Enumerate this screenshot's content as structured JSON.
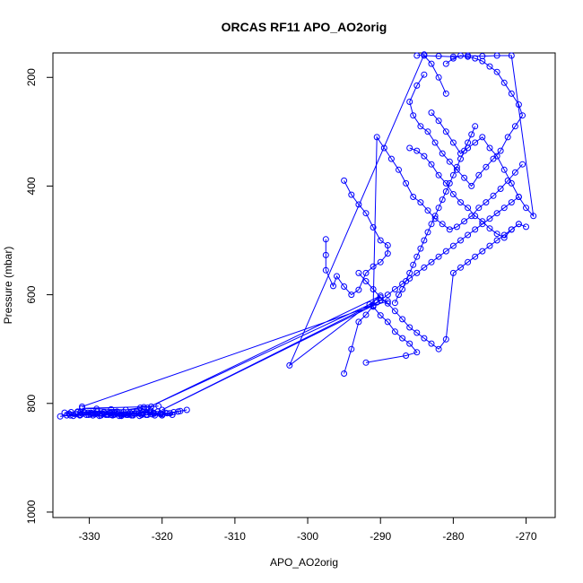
{
  "chart_data": {
    "type": "line",
    "title": "ORCAS RF11 APO_AO2orig",
    "xlabel": "APO_AO2orig",
    "ylabel": "Pressure (mbar)",
    "xlim": [
      -335,
      -266
    ],
    "ylim": [
      1010,
      155
    ],
    "y_reversed": true,
    "grid": false,
    "legend": "none",
    "marker": "open-circle",
    "color": "#0000ff",
    "x_ticks": [
      -330,
      -320,
      -310,
      -300,
      -290,
      -280,
      -270
    ],
    "y_ticks": [
      200,
      400,
      600,
      800,
      1000
    ],
    "x_tick_labels": [
      "-330",
      "-320",
      "-310",
      "-300",
      "-290",
      "-280",
      "-270"
    ],
    "y_tick_labels": [
      "200",
      "400",
      "600",
      "800",
      "1000"
    ],
    "series": [
      {
        "x": [
          -321.7,
          -322.6,
          -323.5,
          -324.4,
          -325.3,
          -326.2,
          -327.1,
          -328.0,
          -328.9,
          -329.8,
          -330.7,
          -331.6,
          -332.5,
          -333.4,
          -332.8,
          -331.9,
          -331.0,
          -330.1,
          -329.2,
          -328.3,
          -327.4,
          -326.5,
          -325.6,
          -324.7,
          -323.8,
          -322.9,
          -322.0,
          -321.1,
          -320.2,
          -319.3,
          -318.4,
          -317.5,
          -316.6,
          -317.8,
          -318.9,
          -319.9,
          -321.0,
          -322.2,
          -323.1,
          -324.0,
          -324.9,
          -325.9,
          -326.8,
          -327.7,
          -328.6,
          -329.5,
          -330.4,
          -331.3,
          -332.2,
          -333.1,
          -334.0,
          -332.6,
          -331.2,
          -329.8,
          -328.4,
          -327.0,
          -325.6,
          -324.2,
          -322.8,
          -321.4,
          -320.0,
          -318.6,
          -319.6,
          -320.6,
          -321.6,
          -322.6,
          -323.6,
          -324.6,
          -325.6,
          -326.6,
          -327.6,
          -328.6,
          -329.6,
          -330.6,
          -331.6,
          -320.2,
          -321.2,
          -322.2,
          -323.2,
          -324.2,
          -325.2,
          -326.2,
          -327.2,
          -328.2,
          -329.2,
          -330.2,
          -331.2,
          -322.5,
          -323.0,
          -325.0,
          -327.0,
          -329.0,
          -331.0,
          -321.5,
          -322.5,
          -320.5
        ],
        "y": [
          815,
          816,
          815,
          817,
          816,
          815,
          817,
          816,
          815,
          817,
          816,
          815,
          816,
          817,
          819,
          820,
          819,
          821,
          820,
          819,
          821,
          820,
          822,
          821,
          819,
          820,
          821,
          819,
          820,
          818,
          816,
          814,
          812,
          815,
          818,
          820,
          822,
          821,
          823,
          822,
          821,
          823,
          822,
          821,
          823,
          822,
          821,
          822,
          823,
          822,
          824,
          822,
          821,
          820,
          822,
          821,
          823,
          822,
          821,
          820,
          822,
          821,
          817,
          815,
          813,
          816,
          818,
          819,
          820,
          821,
          820,
          819,
          818,
          817,
          816,
          818,
          817,
          816,
          818,
          819,
          820,
          819,
          818,
          819,
          818,
          817,
          816,
          810,
          808,
          812,
          811,
          810,
          809,
          806,
          807,
          805
        ]
      },
      {
        "x": [
          -331,
          -291,
          -289,
          -290,
          -290.5,
          -320,
          -291,
          -291.5,
          -322,
          -290,
          -302.5,
          -284,
          -285
        ],
        "y": [
          806,
          620,
          612,
          610,
          614,
          812,
          620,
          618,
          808,
          602,
          730,
          158,
          160
        ]
      },
      {
        "x": [
          -297.5,
          -297.5,
          -297.5,
          -296.5,
          -296,
          -295,
          -294,
          -293,
          -292,
          -291,
          -290,
          -289,
          -289,
          -290,
          -291,
          -292,
          -293,
          -294,
          -295
        ],
        "y": [
          498,
          527,
          555,
          584,
          566,
          585,
          600,
          591,
          560,
          548,
          540,
          524,
          509,
          500,
          476,
          450,
          434,
          416,
          390
        ],
        "note": ""
      },
      {
        "x": [
          -293,
          -292,
          -291,
          -290,
          -289,
          -288,
          -287,
          -286,
          -285,
          -284,
          -283,
          -282,
          -281,
          -280,
          -279,
          -278,
          -277,
          -276,
          -275,
          -274,
          -273,
          -272,
          -271
        ],
        "y": [
          560,
          575,
          590,
          605,
          616,
          630,
          645,
          660,
          670,
          680,
          690,
          700,
          682,
          560,
          550,
          540,
          530,
          520,
          510,
          500,
          490,
          480,
          470
        ]
      },
      {
        "x": [
          -295,
          -294,
          -293,
          -292,
          -291,
          -290,
          -289,
          -288,
          -287,
          -286,
          -285,
          -284,
          -283,
          -282,
          -281,
          -280,
          -279,
          -278,
          -277,
          -276,
          -275,
          -274,
          -273,
          -272,
          -271
        ],
        "y": [
          745,
          700,
          650,
          637,
          620,
          610,
          600,
          590,
          580,
          570,
          560,
          550,
          540,
          530,
          520,
          510,
          500,
          490,
          480,
          470,
          460,
          450,
          440,
          430,
          420
        ]
      },
      {
        "x": [
          -292,
          -286.5,
          -285,
          -286,
          -287,
          -288,
          -289,
          -290,
          -291,
          -290.5,
          -289.5,
          -288.5,
          -287.5,
          -286.5,
          -285.5,
          -284.5,
          -283.5,
          -282.5,
          -281.5,
          -280.5,
          -279.5,
          -278.5,
          -277.5,
          -276.5,
          -275.5,
          -274.5,
          -273.5,
          -272.5,
          -271.5,
          -270.5
        ],
        "y": [
          725,
          712,
          706,
          690,
          680,
          668,
          650,
          638,
          622,
          310,
          330,
          350,
          370,
          395,
          420,
          430,
          445,
          460,
          470,
          480,
          475,
          465,
          455,
          440,
          430,
          418,
          405,
          390,
          375,
          360
        ]
      },
      {
        "x": [
          -284,
          -285,
          -286,
          -285.5,
          -284.5,
          -283.5,
          -282.5,
          -281.5,
          -280.5,
          -279.5,
          -278.5,
          -277.5,
          -276.5,
          -275.5,
          -274.5,
          -273.5,
          -272.5,
          -271.5,
          -270.5,
          -271,
          -272,
          -273,
          -274,
          -275,
          -276,
          -277,
          -278,
          -279,
          -280,
          -281
        ],
        "y": [
          195,
          215,
          245,
          270,
          290,
          300,
          320,
          340,
          355,
          370,
          385,
          400,
          380,
          365,
          350,
          335,
          310,
          290,
          270,
          250,
          230,
          210,
          190,
          180,
          170,
          165,
          162,
          160,
          165,
          175
        ]
      },
      {
        "x": [
          -283,
          -282,
          -281,
          -280,
          -279,
          -278,
          -277,
          -276,
          -275,
          -274,
          -273,
          -272,
          -271,
          -270,
          -269,
          -272,
          -274,
          -276,
          -278,
          -280,
          -282,
          -284,
          -283,
          -282,
          -281
        ],
        "y": [
          265,
          280,
          300,
          320,
          340,
          330,
          320,
          310,
          330,
          345,
          370,
          395,
          420,
          440,
          455,
          160,
          160,
          161,
          160,
          162,
          161,
          160,
          175,
          200,
          230
        ]
      },
      {
        "x": [
          -286,
          -285,
          -284,
          -283,
          -282,
          -281,
          -280,
          -279,
          -278,
          -277,
          -276,
          -275,
          -274,
          -273,
          -272,
          -271,
          -270
        ],
        "y": [
          330,
          335,
          345,
          360,
          380,
          395,
          415,
          430,
          440,
          455,
          465,
          478,
          488,
          495,
          480,
          470,
          475
        ]
      },
      {
        "x": [
          -288,
          -287.5,
          -287,
          -286.5,
          -286,
          -285.5,
          -285,
          -284.5,
          -284,
          -283.5,
          -283,
          -282.5,
          -282,
          -281.5,
          -281,
          -280.5,
          -280,
          -279.5,
          -279,
          -278.5,
          -278,
          -277.5,
          -277
        ],
        "y": [
          615,
          600,
          590,
          575,
          560,
          545,
          530,
          515,
          500,
          485,
          470,
          455,
          440,
          425,
          410,
          395,
          380,
          365,
          350,
          335,
          320,
          305,
          290
        ]
      }
    ]
  }
}
